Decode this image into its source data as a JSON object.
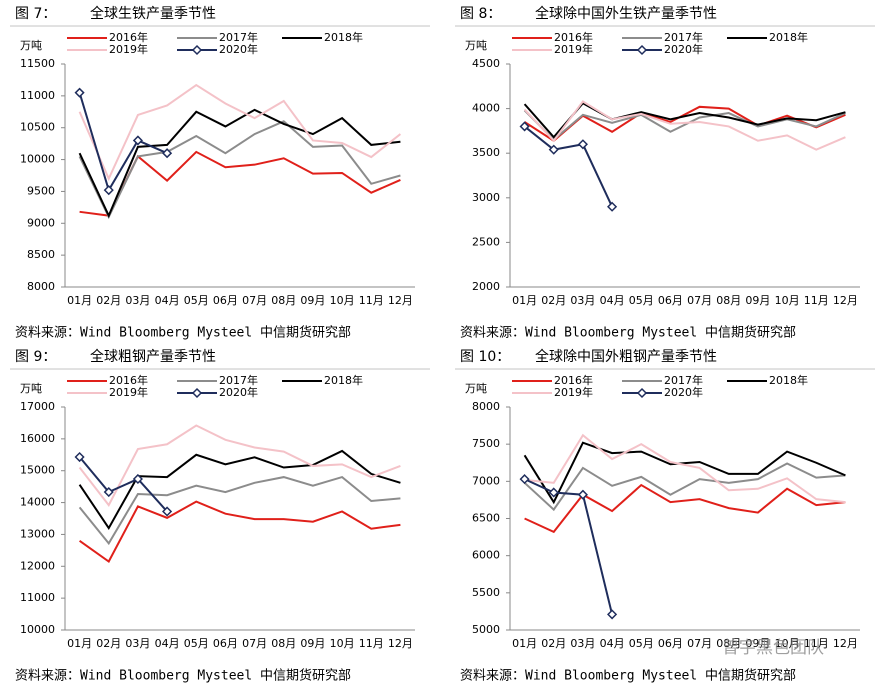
{
  "chart_data": [
    {
      "type": "line",
      "label": "图 7：",
      "title": "全球生铁产量季节性",
      "unit": "万吨",
      "source": "资料来源：Wind Bloomberg Mysteel 中信期货研究部",
      "categories": [
        "01月",
        "02月",
        "03月",
        "04月",
        "05月",
        "06月",
        "07月",
        "08月",
        "09月",
        "10月",
        "11月",
        "12月"
      ],
      "ylim": [
        8000,
        11500
      ],
      "yticks": [
        8000,
        8500,
        9000,
        9500,
        10000,
        10500,
        11000,
        11500
      ],
      "series": [
        {
          "name": "2016年",
          "color": "#e0201a",
          "values": [
            9180,
            9120,
            10050,
            9670,
            10120,
            9880,
            9920,
            10020,
            9780,
            9790,
            9480,
            9680
          ]
        },
        {
          "name": "2017年",
          "color": "#8c8c8c",
          "values": [
            10050,
            9100,
            10050,
            10120,
            10370,
            10100,
            10400,
            10600,
            10200,
            10220,
            9620,
            9750
          ]
        },
        {
          "name": "2018年",
          "color": "#000000",
          "values": [
            10100,
            9120,
            10200,
            10230,
            10750,
            10520,
            10780,
            10560,
            10400,
            10650,
            10230,
            10280
          ]
        },
        {
          "name": "2019年",
          "color": "#f4c2c8",
          "values": [
            10750,
            9700,
            10700,
            10850,
            11170,
            10880,
            10650,
            10920,
            10300,
            10260,
            10040,
            10400
          ]
        },
        {
          "name": "2020年",
          "color": "#1f2d5c",
          "marker": "diamond",
          "values": [
            11050,
            9520,
            10300,
            10100,
            null,
            null,
            null,
            null,
            null,
            null,
            null,
            null
          ]
        }
      ]
    },
    {
      "type": "line",
      "label": "图 8：",
      "title": "全球除中国外生铁产量季节性",
      "unit": "万吨",
      "source": "资料来源：Wind Bloomberg Mysteel 中信期货研究部",
      "categories": [
        "01月",
        "02月",
        "03月",
        "04月",
        "05月",
        "06月",
        "07月",
        "08月",
        "09月",
        "10月",
        "11月",
        "12月"
      ],
      "ylim": [
        2000,
        4500
      ],
      "yticks": [
        2000,
        2500,
        3000,
        3500,
        4000,
        4500
      ],
      "series": [
        {
          "name": "2016年",
          "color": "#e0201a",
          "values": [
            3850,
            3640,
            3920,
            3740,
            3950,
            3850,
            4020,
            4000,
            3810,
            3920,
            3790,
            3930
          ]
        },
        {
          "name": "2017年",
          "color": "#8c8c8c",
          "values": [
            3980,
            3650,
            3930,
            3840,
            3930,
            3740,
            3900,
            3950,
            3800,
            3880,
            3800,
            3950
          ]
        },
        {
          "name": "2018年",
          "color": "#000000",
          "values": [
            4050,
            3680,
            4060,
            3880,
            3960,
            3880,
            3950,
            3900,
            3820,
            3890,
            3870,
            3960
          ]
        },
        {
          "name": "2019年",
          "color": "#f4c2c8",
          "values": [
            3990,
            3640,
            4080,
            3880,
            3940,
            3830,
            3850,
            3800,
            3640,
            3700,
            3540,
            3680
          ]
        },
        {
          "name": "2020年",
          "color": "#1f2d5c",
          "marker": "diamond",
          "values": [
            3800,
            3540,
            3600,
            2900,
            null,
            null,
            null,
            null,
            null,
            null,
            null,
            null
          ]
        }
      ]
    },
    {
      "type": "line",
      "label": "图 9：",
      "title": "全球粗钢产量季节性",
      "unit": "万吨",
      "source": "资料来源：Wind Bloomberg Mysteel 中信期货研究部",
      "categories": [
        "01月",
        "02月",
        "03月",
        "04月",
        "05月",
        "06月",
        "07月",
        "08月",
        "09月",
        "10月",
        "11月",
        "12月"
      ],
      "ylim": [
        10000,
        17000
      ],
      "yticks": [
        10000,
        11000,
        12000,
        13000,
        14000,
        15000,
        16000,
        17000
      ],
      "series": [
        {
          "name": "2016年",
          "color": "#e0201a",
          "values": [
            12800,
            12150,
            13880,
            13520,
            14030,
            13650,
            13480,
            13480,
            13400,
            13720,
            13180,
            13300
          ]
        },
        {
          "name": "2017年",
          "color": "#8c8c8c",
          "values": [
            13850,
            12720,
            14270,
            14230,
            14530,
            14330,
            14620,
            14800,
            14530,
            14800,
            14050,
            14130
          ]
        },
        {
          "name": "2018年",
          "color": "#000000",
          "values": [
            14560,
            13200,
            14830,
            14800,
            15500,
            15200,
            15420,
            15100,
            15180,
            15620,
            14900,
            14620
          ]
        },
        {
          "name": "2019年",
          "color": "#f4c2c8",
          "values": [
            15100,
            13920,
            15680,
            15830,
            16420,
            15970,
            15730,
            15600,
            15150,
            15200,
            14800,
            15150
          ]
        },
        {
          "name": "2020年",
          "color": "#1f2d5c",
          "marker": "diamond",
          "values": [
            15430,
            14330,
            14740,
            13720,
            null,
            null,
            null,
            null,
            null,
            null,
            null,
            null
          ]
        }
      ]
    },
    {
      "type": "line",
      "label": "图 10：",
      "title": "全球除中国外粗钢产量季节性",
      "unit": "万吨",
      "source": "资料来源：Wind Bloomberg Mysteel 中信期货研究部",
      "categories": [
        "01月",
        "02月",
        "03月",
        "04月",
        "05月",
        "06月",
        "07月",
        "08月",
        "09月",
        "10月",
        "11月",
        "12月"
      ],
      "ylim": [
        5000,
        8000
      ],
      "yticks": [
        5000,
        5500,
        6000,
        6500,
        7000,
        7500,
        8000
      ],
      "series": [
        {
          "name": "2016年",
          "color": "#e0201a",
          "values": [
            6500,
            6320,
            6820,
            6600,
            6950,
            6720,
            6760,
            6640,
            6580,
            6900,
            6680,
            6720
          ]
        },
        {
          "name": "2017年",
          "color": "#8c8c8c",
          "values": [
            6980,
            6620,
            7180,
            6940,
            7060,
            6820,
            7030,
            6980,
            7030,
            7240,
            7050,
            7080
          ]
        },
        {
          "name": "2018年",
          "color": "#000000",
          "values": [
            7350,
            6720,
            7520,
            7380,
            7400,
            7230,
            7260,
            7100,
            7100,
            7400,
            7250,
            7080
          ]
        },
        {
          "name": "2019年",
          "color": "#f4c2c8",
          "values": [
            7020,
            6980,
            7620,
            7300,
            7500,
            7260,
            7180,
            6880,
            6900,
            7040,
            6760,
            6720
          ]
        },
        {
          "name": "2020年",
          "color": "#1f2d5c",
          "marker": "diamond",
          "values": [
            7030,
            6850,
            6820,
            5210,
            null,
            null,
            null,
            null,
            null,
            null,
            null,
            null
          ]
        }
      ]
    }
  ],
  "watermark": "曾宇黑色团队"
}
